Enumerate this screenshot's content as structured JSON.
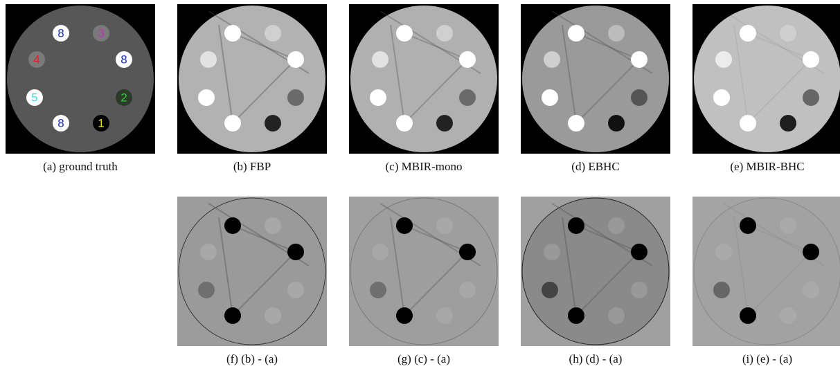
{
  "panels": [
    {
      "caption": "(a) ground truth",
      "insert_labels": [
        "8",
        "3",
        "4",
        "8",
        "5",
        "2",
        "8",
        "1"
      ]
    },
    {
      "caption": "(b) FBP"
    },
    {
      "caption": "(c) MBIR-mono"
    },
    {
      "caption": "(d) EBHC"
    },
    {
      "caption": "(e) MBIR-BHC"
    },
    {
      "caption": "(f) (b) - (a)"
    },
    {
      "caption": "(g) (c) - (a)"
    },
    {
      "caption": "(h) (d) - (a)"
    },
    {
      "caption": "(i) (e) - (a)"
    }
  ]
}
